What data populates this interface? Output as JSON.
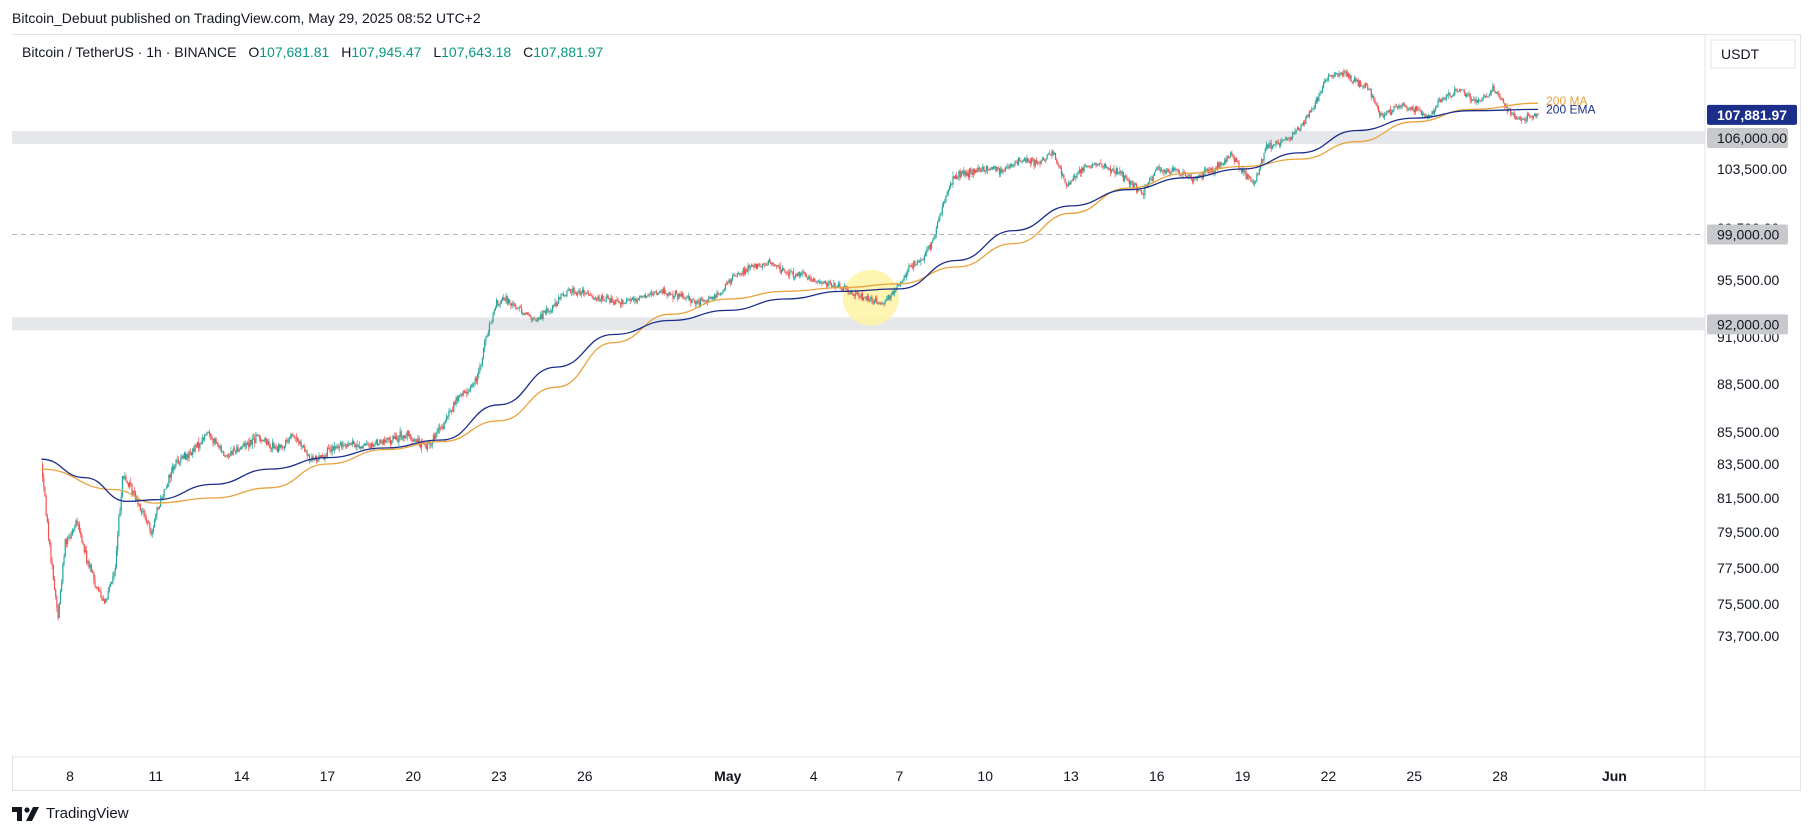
{
  "header": {
    "published_by": "Bitcoin_Debuut published on TradingView.com, May 29, 2025 08:52 UTC+2"
  },
  "legend": {
    "symbol": "Bitcoin / TetherUS · 1h · BINANCE",
    "open_key": "O",
    "open": "107,681.81",
    "high_key": "H",
    "high": "107,945.47",
    "low_key": "L",
    "low": "107,643.18",
    "close_key": "C",
    "close": "107,881.97"
  },
  "footer": {
    "brand": "TradingView"
  },
  "chart_data": {
    "type": "line",
    "currency": "USDT",
    "y_ticks": [
      "73,700.00",
      "75,500.00",
      "77,500.00",
      "79,500.00",
      "81,500.00",
      "83,500.00",
      "85,500.00",
      "88,500.00",
      "91,000.00",
      "95,500.00",
      "99,500.00",
      "103,500.00"
    ],
    "x_ticks": [
      "8",
      "11",
      "14",
      "17",
      "20",
      "23",
      "26",
      "May",
      "4",
      "7",
      "10",
      "13",
      "16",
      "19",
      "22",
      "25",
      "28",
      "Jun"
    ],
    "last_price_label": "107,881.97",
    "level_labels": [
      "106,000.00",
      "99,000.00",
      "92,000.00"
    ],
    "levels": [
      106000,
      99000,
      92000
    ],
    "ma_label": "200 MA",
    "ema_label": "200 EMA",
    "colors": {
      "up": "#26a69a",
      "down": "#ef5350",
      "ma": "#e8a33d",
      "ema": "#1b2e8a",
      "last_price_bg": "#1b2e8a",
      "zone": "#e6e7ea",
      "highlight": "#fff3a6"
    },
    "price_path": [
      [
        "Apr 7 00:00",
        83500
      ],
      [
        "Apr 7 08:00",
        78000
      ],
      [
        "Apr 7 14:00",
        74800
      ],
      [
        "Apr 7 20:00",
        79000
      ],
      [
        "Apr 8 06:00",
        80000
      ],
      [
        "Apr 8 14:00",
        78000
      ],
      [
        "Apr 8 22:00",
        76500
      ],
      [
        "Apr 9 06:00",
        75600
      ],
      [
        "Apr 9 14:00",
        77500
      ],
      [
        "Apr 9 20:00",
        82800
      ],
      [
        "Apr 10 08:00",
        81500
      ],
      [
        "Apr 10 20:00",
        79500
      ],
      [
        "Apr 11 06:00",
        81800
      ],
      [
        "Apr 11 16:00",
        83600
      ],
      [
        "Apr 12 06:00",
        84200
      ],
      [
        "Apr 12 20:00",
        85500
      ],
      [
        "Apr 13 10:00",
        84000
      ],
      [
        "Apr 14 00:00",
        84600
      ],
      [
        "Apr 14 14:00",
        85200
      ],
      [
        "Apr 15 06:00",
        84400
      ],
      [
        "Apr 15 20:00",
        85300
      ],
      [
        "Apr 16 10:00",
        83700
      ],
      [
        "Apr 17 00:00",
        84200
      ],
      [
        "Apr 17 14:00",
        84800
      ],
      [
        "Apr 18 06:00",
        84600
      ],
      [
        "Apr 19 00:00",
        84900
      ],
      [
        "Apr 19 18:00",
        85300
      ],
      [
        "Apr 20 10:00",
        84600
      ],
      [
        "Apr 21 00:00",
        85700
      ],
      [
        "Apr 21 12:00",
        87500
      ],
      [
        "Apr 21 20:00",
        88000
      ],
      [
        "Apr 22 06:00",
        88800
      ],
      [
        "Apr 22 14:00",
        91200
      ],
      [
        "Apr 22 22:00",
        93600
      ],
      [
        "Apr 23 06:00",
        94000
      ],
      [
        "Apr 23 18:00",
        93200
      ],
      [
        "Apr 24 06:00",
        92300
      ],
      [
        "Apr 24 20:00",
        93300
      ],
      [
        "Apr 25 10:00",
        94700
      ],
      [
        "Apr 26 00:00",
        94400
      ],
      [
        "Apr 26 16:00",
        94000
      ],
      [
        "Apr 27 08:00",
        93800
      ],
      [
        "Apr 28 00:00",
        94200
      ],
      [
        "Apr 28 16:00",
        94600
      ],
      [
        "Apr 29 08:00",
        94200
      ],
      [
        "Apr 30 00:00",
        93700
      ],
      [
        "Apr 30 16:00",
        94300
      ],
      [
        "May 1 06:00",
        95900
      ],
      [
        "May 1 20:00",
        96500
      ],
      [
        "May 2 10:00",
        96800
      ],
      [
        "May 3 00:00",
        96200
      ],
      [
        "May 3 16:00",
        95800
      ],
      [
        "May 4 08:00",
        95300
      ],
      [
        "May 4 22:00",
        94900
      ],
      [
        "May 5 10:00",
        94300
      ],
      [
        "May 5 22:00",
        94000
      ],
      [
        "May 6 10:00",
        93700
      ],
      [
        "May 6 22:00",
        94900
      ],
      [
        "May 7 10:00",
        96700
      ],
      [
        "May 7 20:00",
        97000
      ],
      [
        "May 8 06:00",
        99000
      ],
      [
        "May 8 14:00",
        101500
      ],
      [
        "May 8 22:00",
        103000
      ],
      [
        "May 9 10:00",
        103200
      ],
      [
        "May 10 00:00",
        103600
      ],
      [
        "May 10 14:00",
        103400
      ],
      [
        "May 11 06:00",
        104300
      ],
      [
        "May 11 20:00",
        104000
      ],
      [
        "May 12 10:00",
        104700
      ],
      [
        "May 12 20:00",
        102300
      ],
      [
        "May 13 06:00",
        103300
      ],
      [
        "May 13 20:00",
        104000
      ],
      [
        "May 14 10:00",
        103600
      ],
      [
        "May 15 00:00",
        102700
      ],
      [
        "May 15 12:00",
        101900
      ],
      [
        "May 16 00:00",
        103500
      ],
      [
        "May 16 14:00",
        103400
      ],
      [
        "May 17 06:00",
        102800
      ],
      [
        "May 18 00:00",
        103500
      ],
      [
        "May 18 14:00",
        104700
      ],
      [
        "May 19 00:00",
        103400
      ],
      [
        "May 19 10:00",
        102400
      ],
      [
        "May 19 20:00",
        105300
      ],
      [
        "May 20 10:00",
        105600
      ],
      [
        "May 21 00:00",
        106800
      ],
      [
        "May 21 12:00",
        108600
      ],
      [
        "May 21 22:00",
        110700
      ],
      [
        "May 22 10:00",
        111300
      ],
      [
        "May 22 22:00",
        110600
      ],
      [
        "May 23 10:00",
        110000
      ],
      [
        "May 23 20:00",
        107800
      ],
      [
        "May 24 10:00",
        108500
      ],
      [
        "May 25 00:00",
        108300
      ],
      [
        "May 25 12:00",
        107700
      ],
      [
        "May 26 00:00",
        109300
      ],
      [
        "May 26 14:00",
        109800
      ],
      [
        "May 27 06:00",
        108900
      ],
      [
        "May 27 18:00",
        109900
      ],
      [
        "May 28 06:00",
        108400
      ],
      [
        "May 28 14:00",
        107600
      ],
      [
        "May 29 00:00",
        107700
      ],
      [
        "May 29 08:00",
        107882
      ]
    ],
    "ma_200": [
      [
        "Apr 7 00:00",
        83200
      ],
      [
        "Apr 9 12:00",
        82000
      ],
      [
        "Apr 11 00:00",
        81200
      ],
      [
        "Apr 13 00:00",
        81500
      ],
      [
        "Apr 15 00:00",
        82100
      ],
      [
        "Apr 17 00:00",
        83500
      ],
      [
        "Apr 19 00:00",
        84400
      ],
      [
        "Apr 21 00:00",
        84900
      ],
      [
        "Apr 23 00:00",
        86200
      ],
      [
        "Apr 25 00:00",
        88300
      ],
      [
        "Apr 27 00:00",
        90700
      ],
      [
        "Apr 29 00:00",
        92800
      ],
      [
        "May 1 00:00",
        94000
      ],
      [
        "May 3 00:00",
        94600
      ],
      [
        "May 5 00:00",
        94900
      ],
      [
        "May 7 00:00",
        95200
      ],
      [
        "May 9 00:00",
        96500
      ],
      [
        "May 11 00:00",
        98300
      ],
      [
        "May 13 00:00",
        100500
      ],
      [
        "May 15 00:00",
        102200
      ],
      [
        "May 17 00:00",
        103200
      ],
      [
        "May 19 00:00",
        103700
      ],
      [
        "May 21 00:00",
        104300
      ],
      [
        "May 23 00:00",
        105700
      ],
      [
        "May 25 00:00",
        107300
      ],
      [
        "May 27 00:00",
        108300
      ],
      [
        "May 29 08:00",
        108800
      ]
    ],
    "ema_200": [
      [
        "Apr 7 00:00",
        83800
      ],
      [
        "Apr 8 12:00",
        82700
      ],
      [
        "Apr 10 00:00",
        81300
      ],
      [
        "Apr 11 00:00",
        81400
      ],
      [
        "Apr 13 00:00",
        82300
      ],
      [
        "Apr 15 00:00",
        83200
      ],
      [
        "Apr 17 00:00",
        83900
      ],
      [
        "Apr 19 00:00",
        84500
      ],
      [
        "Apr 21 00:00",
        85000
      ],
      [
        "Apr 23 00:00",
        87200
      ],
      [
        "Apr 25 00:00",
        89400
      ],
      [
        "Apr 27 00:00",
        91200
      ],
      [
        "Apr 29 00:00",
        92300
      ],
      [
        "May 1 00:00",
        93100
      ],
      [
        "May 3 00:00",
        94000
      ],
      [
        "May 5 00:00",
        94600
      ],
      [
        "May 7 00:00",
        94800
      ],
      [
        "May 9 00:00",
        97000
      ],
      [
        "May 11 00:00",
        99300
      ],
      [
        "May 13 00:00",
        101000
      ],
      [
        "May 15 00:00",
        102100
      ],
      [
        "May 17 00:00",
        102900
      ],
      [
        "May 19 00:00",
        103500
      ],
      [
        "May 21 00:00",
        104800
      ],
      [
        "May 23 00:00",
        106600
      ],
      [
        "May 25 00:00",
        107600
      ],
      [
        "May 27 00:00",
        108200
      ],
      [
        "May 29 08:00",
        108300
      ]
    ]
  }
}
